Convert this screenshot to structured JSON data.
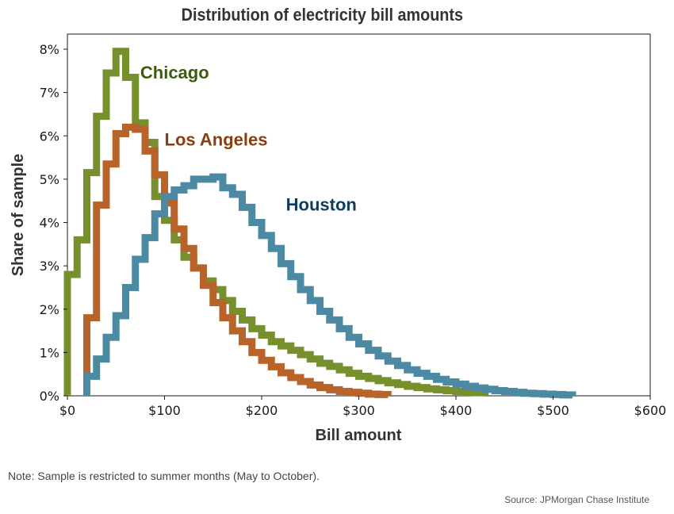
{
  "chart_data": {
    "type": "line",
    "title": "Distribution of electricity bill amounts",
    "xlabel": "Bill amount",
    "ylabel": "Share of sample",
    "xlim": [
      0,
      600
    ],
    "ylim": [
      0,
      8
    ],
    "x_ticks": [
      "$0",
      "$100",
      "$200",
      "$300",
      "$400",
      "$500",
      "$600"
    ],
    "y_ticks": [
      "0%",
      "1%",
      "2%",
      "3%",
      "4%",
      "5%",
      "6%",
      "7%",
      "8%"
    ],
    "grid": false,
    "legend": "direct labels",
    "bin_width": 10,
    "series": [
      {
        "name": "Chicago",
        "color": "#76902e",
        "label_color": "#3d5a12",
        "x_start": 0,
        "values": [
          2.8,
          3.6,
          5.15,
          6.45,
          7.45,
          7.95,
          7.35,
          6.3,
          5.85,
          4.6,
          4.05,
          3.6,
          3.2,
          2.95,
          2.65,
          2.45,
          2.2,
          1.95,
          1.75,
          1.55,
          1.4,
          1.25,
          1.15,
          1.05,
          0.95,
          0.85,
          0.75,
          0.68,
          0.6,
          0.52,
          0.45,
          0.4,
          0.35,
          0.3,
          0.26,
          0.22,
          0.19,
          0.16,
          0.14,
          0.12,
          0.1,
          0.08,
          0.07
        ],
        "label_anchor": [
          75,
          7.45
        ]
      },
      {
        "name": "Los Angeles",
        "color": "#b8632a",
        "label_color": "#8a3e10",
        "x_start": 20,
        "values": [
          1.8,
          4.4,
          5.35,
          6.05,
          6.2,
          6.15,
          5.65,
          5.1,
          4.45,
          3.85,
          3.4,
          2.95,
          2.55,
          2.15,
          1.8,
          1.5,
          1.25,
          1.0,
          0.82,
          0.67,
          0.53,
          0.42,
          0.33,
          0.25,
          0.19,
          0.14,
          0.1,
          0.08,
          0.06,
          0.04,
          0.03
        ],
        "label_anchor": [
          100,
          5.9
        ]
      },
      {
        "name": "Houston",
        "color": "#4b8aa2",
        "label_color": "#0d3c5c",
        "x_start": 20,
        "values": [
          0.45,
          0.85,
          1.35,
          1.85,
          2.5,
          3.15,
          3.65,
          4.2,
          4.6,
          4.75,
          4.85,
          5.0,
          5.0,
          5.05,
          4.8,
          4.65,
          4.35,
          4.0,
          3.7,
          3.4,
          3.05,
          2.75,
          2.45,
          2.2,
          1.95,
          1.75,
          1.55,
          1.35,
          1.2,
          1.05,
          0.92,
          0.8,
          0.7,
          0.6,
          0.52,
          0.45,
          0.38,
          0.32,
          0.27,
          0.22,
          0.18,
          0.15,
          0.12,
          0.1,
          0.08,
          0.06,
          0.05,
          0.04,
          0.03,
          0.02
        ],
        "label_anchor": [
          225,
          4.4
        ]
      }
    ]
  },
  "note": "Note: Sample is restricted to summer months (May to October).",
  "source": "Source: JPMorgan Chase Institute"
}
